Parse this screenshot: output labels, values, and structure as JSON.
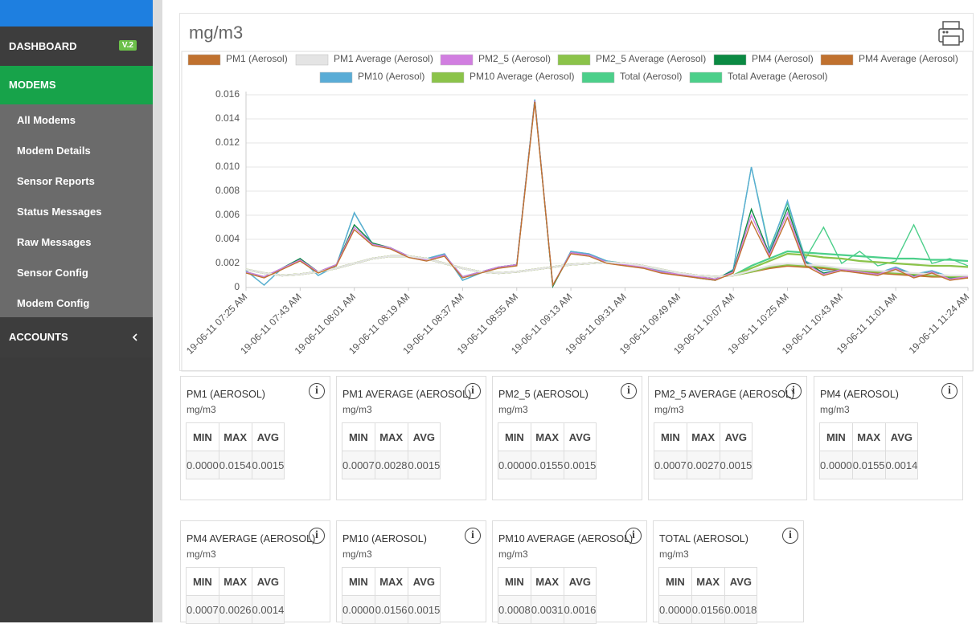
{
  "sidebar": {
    "dashboard": "DASHBOARD",
    "version": "V.2",
    "modems": "MODEMS",
    "items": [
      "All Modems",
      "Modem Details",
      "Sensor Reports",
      "Status Messages",
      "Raw Messages",
      "Sensor Config",
      "Modem Config"
    ],
    "accounts": "ACCOUNTS"
  },
  "chart_data": {
    "type": "line",
    "title": "mg/m3",
    "categories": [
      "19-06-11 07:25 AM",
      null,
      null,
      "19-06-11 07:43 AM",
      null,
      null,
      "19-06-11 08:01 AM",
      null,
      null,
      "19-06-11 08:19 AM",
      null,
      null,
      "19-06-11 08:37 AM",
      null,
      null,
      "19-06-11 08:55 AM",
      null,
      null,
      "19-06-11 09:13 AM",
      null,
      null,
      "19-06-11 09:31 AM",
      null,
      null,
      "19-06-11 09:49 AM",
      null,
      null,
      "19-06-11 10:07 AM",
      null,
      null,
      "19-06-11 10:25 AM",
      null,
      null,
      "19-06-11 10:43 AM",
      null,
      null,
      "19-06-11 11:01 AM",
      null,
      null,
      null,
      "19-06-11 11:24 AM"
    ],
    "ylim": [
      0,
      0.016
    ],
    "yticks": [
      0,
      0.002,
      0.004,
      0.006,
      0.008,
      {
        "value": 0.01,
        "label": "0.010"
      },
      0.012,
      0.014,
      0.016
    ],
    "grid": true,
    "series": [
      {
        "name": "PM1 (Aerosol)",
        "color": "#c0712f",
        "values": [
          0.0012,
          0.0008,
          0.0015,
          0.0022,
          0.0012,
          0.0018,
          0.0048,
          0.0035,
          0.0032,
          0.0025,
          0.0022,
          0.0026,
          0.0008,
          0.0012,
          0.0016,
          0.0018,
          0.0154,
          0.0002,
          0.0028,
          0.0026,
          0.002,
          0.0018,
          0.0016,
          0.0012,
          0.001,
          0.0008,
          0.0006,
          0.0012,
          0.0055,
          0.0025,
          0.0058,
          0.0018,
          0.001,
          0.0014,
          0.0012,
          0.001,
          0.0015,
          0.0008,
          0.0012,
          0.0006,
          0.0008
        ]
      },
      {
        "name": "PM1 Average (Aerosol)",
        "color": "#e4e4e4",
        "values": [
          0.0015,
          0.0012,
          0.001,
          0.0011,
          0.0013,
          0.0016,
          0.002,
          0.0024,
          0.0026,
          0.0026,
          0.0024,
          0.002,
          0.0016,
          0.0013,
          0.0012,
          0.0013,
          0.0015,
          0.0017,
          0.0019,
          0.002,
          0.0021,
          0.002,
          0.0018,
          0.0015,
          0.0012,
          0.001,
          0.0009,
          0.001,
          0.0014,
          0.0018,
          0.002,
          0.0019,
          0.0018,
          0.0016,
          0.0015,
          0.0014,
          0.0013,
          0.0012,
          0.0011,
          0.001,
          0.001
        ]
      },
      {
        "name": "PM2_5 (Aerosol)",
        "color": "#d17ee0",
        "values": [
          0.0013,
          0.0009,
          0.0016,
          0.0023,
          0.0013,
          0.0019,
          0.005,
          0.0036,
          0.0033,
          0.0026,
          0.0023,
          0.0027,
          0.0009,
          0.0013,
          0.0017,
          0.0019,
          0.0155,
          0.0002,
          0.0029,
          0.0027,
          0.0021,
          0.0019,
          0.0017,
          0.0013,
          0.0011,
          0.0009,
          0.0007,
          0.0013,
          0.006,
          0.0027,
          0.0062,
          0.002,
          0.0011,
          0.0015,
          0.0013,
          0.0011,
          0.0016,
          0.0009,
          0.0013,
          0.0007,
          0.0009
        ]
      },
      {
        "name": "PM2_5 Average (Aerosol)",
        "color": "#8bc34a",
        "values": [
          0.0015,
          0.0012,
          0.001,
          0.0011,
          0.0013,
          0.0016,
          0.002,
          0.0024,
          0.0026,
          0.0026,
          0.0024,
          0.002,
          0.0016,
          0.0013,
          0.0012,
          0.0013,
          0.0015,
          0.0017,
          0.0019,
          0.002,
          0.0021,
          0.002,
          0.0018,
          0.0015,
          0.0012,
          0.001,
          0.0009,
          0.001,
          0.0013,
          0.0017,
          0.0019,
          0.0018,
          0.0017,
          0.0015,
          0.0014,
          0.0013,
          0.0012,
          0.0011,
          0.001,
          0.0009,
          0.0009
        ]
      },
      {
        "name": "PM4 (Aerosol)",
        "color": "#0b8a43",
        "values": [
          0.0013,
          0.0009,
          0.0016,
          0.0024,
          0.0013,
          0.0019,
          0.0052,
          0.0037,
          0.0033,
          0.0026,
          0.0023,
          0.0027,
          0.0009,
          0.0013,
          0.0017,
          0.0019,
          0.0155,
          0.0001,
          0.0029,
          0.0027,
          0.0021,
          0.0019,
          0.0017,
          0.0013,
          0.0011,
          0.0009,
          0.0007,
          0.0014,
          0.0065,
          0.0028,
          0.0066,
          0.0021,
          0.0012,
          0.0015,
          0.0013,
          0.0011,
          0.0016,
          0.001,
          0.0013,
          0.0008,
          0.0009
        ]
      },
      {
        "name": "PM4 Average (Aerosol)",
        "color": "#c0712f",
        "values": [
          0.0015,
          0.0012,
          0.001,
          0.0011,
          0.0013,
          0.0016,
          0.002,
          0.0024,
          0.0026,
          0.0026,
          0.0024,
          0.002,
          0.0016,
          0.0013,
          0.0012,
          0.0013,
          0.0015,
          0.0017,
          0.0019,
          0.002,
          0.0021,
          0.002,
          0.0018,
          0.0015,
          0.0012,
          0.001,
          0.0009,
          0.001,
          0.0013,
          0.0016,
          0.0018,
          0.0017,
          0.0016,
          0.0014,
          0.0013,
          0.0012,
          0.0011,
          0.001,
          0.0009,
          0.0009,
          0.0008
        ]
      },
      {
        "name": "PM10 (Aerosol)",
        "color": "#5aacd6",
        "values": [
          0.0014,
          0.0002,
          0.0016,
          0.0024,
          0.001,
          0.0018,
          0.0062,
          0.0036,
          0.0033,
          0.0026,
          0.0024,
          0.0028,
          0.0006,
          0.0012,
          0.0017,
          0.0019,
          0.0156,
          0.0001,
          0.003,
          0.0028,
          0.0022,
          0.002,
          0.0018,
          0.0014,
          0.0011,
          0.0008,
          0.0006,
          0.0015,
          0.01,
          0.003,
          0.0072,
          0.0022,
          0.0014,
          0.0016,
          0.0014,
          0.0012,
          0.0017,
          0.0011,
          0.0014,
          0.0009,
          0.001
        ]
      },
      {
        "name": "PM10 Average (Aerosol)",
        "color": "#8bc34a",
        "values": [
          0.0015,
          0.0012,
          0.001,
          0.0011,
          0.0013,
          0.0016,
          0.002,
          0.0024,
          0.0026,
          0.0026,
          0.0024,
          0.002,
          0.0016,
          0.0013,
          0.0012,
          0.0013,
          0.0015,
          0.0017,
          0.0019,
          0.002,
          0.0021,
          0.002,
          0.0018,
          0.0015,
          0.0012,
          0.001,
          0.0009,
          0.001,
          0.0016,
          0.0022,
          0.0028,
          0.0027,
          0.0025,
          0.0024,
          0.0022,
          0.0021,
          0.002,
          0.0019,
          0.0018,
          0.0018,
          0.0017
        ]
      },
      {
        "name": "Total (Aerosol)",
        "color": "#4ccf8a",
        "values": [
          0.0014,
          0.0002,
          0.0016,
          0.0024,
          0.001,
          0.0018,
          0.0062,
          0.0036,
          0.0033,
          0.0026,
          0.0024,
          0.0028,
          0.0006,
          0.0012,
          0.0017,
          0.0019,
          0.0156,
          0.0001,
          0.003,
          0.0028,
          0.0022,
          0.002,
          0.0018,
          0.0014,
          0.0011,
          0.0008,
          0.0006,
          0.0015,
          0.01,
          0.0032,
          0.007,
          0.0024,
          0.005,
          0.002,
          0.003,
          0.0018,
          0.0022,
          0.0052,
          0.002,
          0.0024,
          0.0018
        ]
      },
      {
        "name": "Total Average (Aerosol)",
        "color": "#4ccf8a",
        "values": [
          0.0015,
          0.0012,
          0.001,
          0.0011,
          0.0013,
          0.0016,
          0.002,
          0.0024,
          0.0026,
          0.0026,
          0.0024,
          0.002,
          0.0016,
          0.0013,
          0.0012,
          0.0013,
          0.0015,
          0.0017,
          0.0019,
          0.002,
          0.0021,
          0.002,
          0.0018,
          0.0015,
          0.0012,
          0.001,
          0.0009,
          0.001,
          0.0018,
          0.0024,
          0.003,
          0.0029,
          0.0028,
          0.0027,
          0.0026,
          0.0025,
          0.0024,
          0.0024,
          0.0023,
          0.0023,
          0.0022
        ]
      }
    ]
  },
  "stat_headers": [
    "MIN",
    "MAX",
    "AVG"
  ],
  "cards": [
    {
      "title": "PM1 (AEROSOL)",
      "unit": "mg/m3",
      "min": "0.0000",
      "max": "0.0154",
      "avg": "0.0015"
    },
    {
      "title": "PM1 AVERAGE (AEROSOL)",
      "unit": "mg/m3",
      "min": "0.0007",
      "max": "0.0028",
      "avg": "0.0015"
    },
    {
      "title": "PM2_5 (AEROSOL)",
      "unit": "mg/m3",
      "min": "0.0000",
      "max": "0.0155",
      "avg": "0.0015"
    },
    {
      "title": "PM2_5 AVERAGE (AEROSOL)",
      "unit": "mg/m3",
      "min": "0.0007",
      "max": "0.0027",
      "avg": "0.0015"
    },
    {
      "title": "PM4 (AEROSOL)",
      "unit": "mg/m3",
      "min": "0.0000",
      "max": "0.0155",
      "avg": "0.0014"
    },
    {
      "title": "PM4 AVERAGE (AEROSOL)",
      "unit": "mg/m3",
      "min": "0.0007",
      "max": "0.0026",
      "avg": "0.0014"
    },
    {
      "title": "PM10 (AEROSOL)",
      "unit": "mg/m3",
      "min": "0.0000",
      "max": "0.0156",
      "avg": "0.0015"
    },
    {
      "title": "PM10 AVERAGE (AEROSOL)",
      "unit": "mg/m3",
      "min": "0.0008",
      "max": "0.0031",
      "avg": "0.0016"
    },
    {
      "title": "TOTAL (AEROSOL)",
      "unit": "mg/m3",
      "min": "0.0000",
      "max": "0.0156",
      "avg": "0.0018"
    }
  ]
}
